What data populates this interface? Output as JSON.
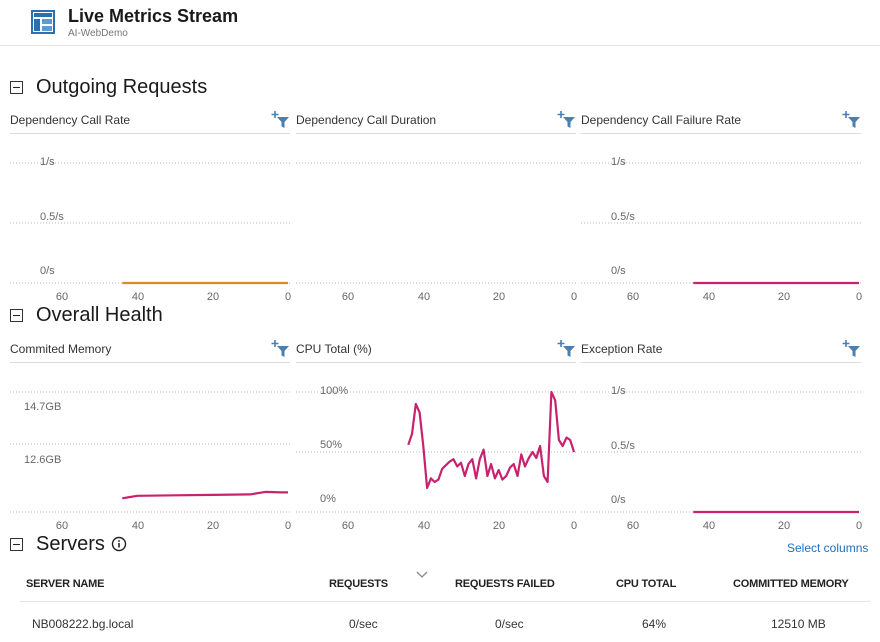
{
  "header": {
    "title": "Live Metrics Stream",
    "subtitle": "AI-WebDemo",
    "icon": "dashboard-icon"
  },
  "sections": {
    "outgoing": "Outgoing Requests",
    "health": "Overall Health",
    "servers": "Servers"
  },
  "colors": {
    "orange": "#d98a2b",
    "magenta": "#c8226e",
    "filter": "#4a7fb0",
    "link": "#1f6fbf"
  },
  "charts": [
    {
      "title": "Dependency Call Rate",
      "yticks": [
        "1/s",
        "0.5/s",
        "0/s"
      ],
      "xticks": [
        "60",
        "40",
        "20",
        "0"
      ],
      "series_color": "#d98a2b",
      "data": [
        [
          44,
          0
        ],
        [
          0,
          0
        ]
      ]
    },
    {
      "title": "Dependency Call Duration",
      "yticks": [],
      "xticks": [
        "60",
        "40",
        "20",
        "0"
      ],
      "series_color": "",
      "data": []
    },
    {
      "title": "Dependency Call Failure Rate",
      "yticks": [
        "1/s",
        "0.5/s",
        "0/s"
      ],
      "xticks": [
        "60",
        "40",
        "20",
        "0"
      ],
      "series_color": "#c8226e",
      "data": [
        [
          44,
          0
        ],
        [
          0,
          0
        ]
      ]
    },
    {
      "title": "Commited Memory",
      "yticks": [
        "14.7GB",
        "12.6GB"
      ],
      "xticks": [
        "60",
        "40",
        "20",
        "0"
      ],
      "series_color": "#c8226e",
      "data": [
        [
          44,
          12.58
        ],
        [
          40,
          12.63
        ],
        [
          30,
          12.64
        ],
        [
          20,
          12.65
        ],
        [
          10,
          12.66
        ],
        [
          6,
          12.71
        ],
        [
          2,
          12.7
        ],
        [
          0,
          12.7
        ]
      ]
    },
    {
      "title": "CPU Total (%)",
      "yticks": [
        "100%",
        "50%",
        "0%"
      ],
      "xticks": [
        "60",
        "40",
        "20",
        "0"
      ],
      "series_color": "#c8226e",
      "data": [
        [
          44,
          56
        ],
        [
          43,
          65
        ],
        [
          42,
          90
        ],
        [
          41,
          83
        ],
        [
          40,
          55
        ],
        [
          39,
          20
        ],
        [
          38,
          28
        ],
        [
          37,
          25
        ],
        [
          36,
          27
        ],
        [
          35,
          36
        ],
        [
          34,
          39
        ],
        [
          33,
          42
        ],
        [
          32,
          44
        ],
        [
          31,
          38
        ],
        [
          30,
          41
        ],
        [
          29,
          30
        ],
        [
          28,
          40
        ],
        [
          27,
          44
        ],
        [
          26,
          28
        ],
        [
          25,
          44
        ],
        [
          24,
          52
        ],
        [
          23,
          30
        ],
        [
          22,
          40
        ],
        [
          21,
          28
        ],
        [
          20,
          35
        ],
        [
          19,
          27
        ],
        [
          18,
          30
        ],
        [
          17,
          37
        ],
        [
          16,
          40
        ],
        [
          15,
          30
        ],
        [
          14,
          48
        ],
        [
          13,
          38
        ],
        [
          12,
          45
        ],
        [
          11,
          50
        ],
        [
          10,
          45
        ],
        [
          9,
          55
        ],
        [
          8,
          30
        ],
        [
          7,
          25
        ],
        [
          6,
          100
        ],
        [
          5,
          93
        ],
        [
          4,
          60
        ],
        [
          3,
          55
        ],
        [
          2,
          62
        ],
        [
          1,
          60
        ],
        [
          0,
          50
        ]
      ]
    },
    {
      "title": "Exception Rate",
      "yticks": [
        "1/s",
        "0.5/s",
        "0/s"
      ],
      "xticks": [
        "60",
        "40",
        "20",
        "0"
      ],
      "series_color": "#c8226e",
      "data": [
        [
          44,
          0
        ],
        [
          0,
          0
        ]
      ]
    }
  ],
  "servers": {
    "select_columns": "Select columns",
    "columns": {
      "name": "SERVER NAME",
      "requests": "REQUESTS",
      "failed": "REQUESTS FAILED",
      "cpu": "CPU TOTAL",
      "memory": "COMMITTED MEMORY"
    },
    "rows": [
      {
        "name": "NB008222.bg.local",
        "requests": "0/sec",
        "failed": "0/sec",
        "cpu": "64%",
        "memory": "12510 MB"
      }
    ]
  }
}
